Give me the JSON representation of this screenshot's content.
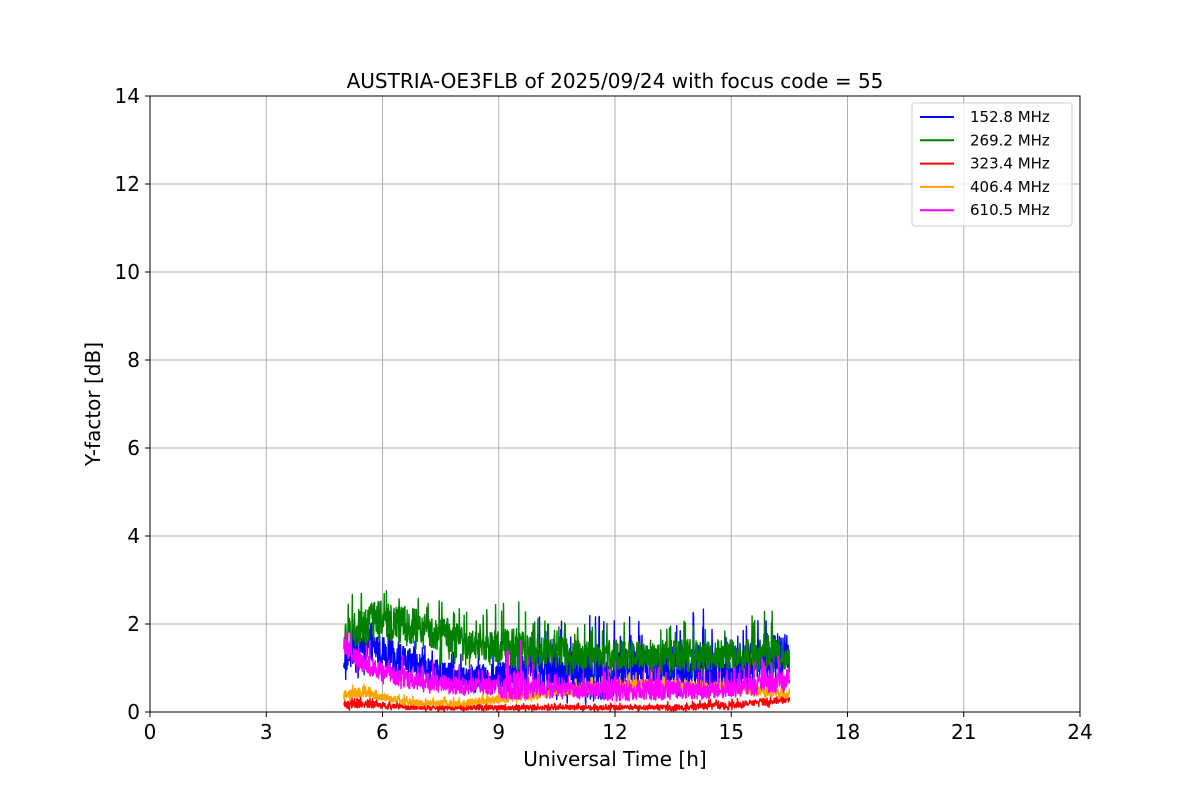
{
  "chart_data": {
    "type": "line",
    "title": "AUSTRIA-OE3FLB of 2025/09/24 with focus code = 55",
    "xlabel": "Universal Time [h]",
    "ylabel": "Y-factor [dB]",
    "xlim": [
      0,
      24
    ],
    "ylim": [
      0,
      14
    ],
    "xticks": [
      0,
      3,
      6,
      9,
      12,
      15,
      18,
      21,
      24
    ],
    "yticks": [
      0,
      2,
      4,
      6,
      8,
      10,
      12,
      14
    ],
    "grid": true,
    "legend_position": "top-right",
    "series": [
      {
        "name": "152.8 MHz",
        "color": "#0000ff",
        "x": [
          5.0,
          5.5,
          6.0,
          6.5,
          7.0,
          7.5,
          8.0,
          8.5,
          9.0,
          9.5,
          10.0,
          10.5,
          11.0,
          11.5,
          12.0,
          12.5,
          13.0,
          13.5,
          14.0,
          14.5,
          15.0,
          15.5,
          16.0,
          16.5
        ],
        "y": [
          1.2,
          1.6,
          1.4,
          1.2,
          1.0,
          0.9,
          0.8,
          0.8,
          0.8,
          0.9,
          1.0,
          0.9,
          0.9,
          0.8,
          0.9,
          1.0,
          1.0,
          1.0,
          1.0,
          1.0,
          1.0,
          1.1,
          1.2,
          1.3
        ],
        "y_min": [
          0.6,
          0.7,
          0.7,
          0.6,
          0.5,
          0.5,
          0.4,
          0.4,
          0.4,
          0.4,
          0.3,
          0.2,
          0.1,
          0.2,
          0.3,
          0.3,
          0.3,
          0.3,
          0.3,
          0.3,
          0.3,
          0.4,
          0.4,
          0.5
        ],
        "y_max": [
          1.8,
          2.2,
          2.0,
          1.8,
          1.6,
          1.5,
          1.4,
          1.4,
          1.5,
          1.6,
          2.2,
          2.1,
          2.0,
          2.3,
          2.2,
          2.2,
          2.0,
          2.2,
          2.4,
          2.3,
          2.1,
          2.3,
          2.5,
          2.2
        ]
      },
      {
        "name": "269.2 MHz",
        "color": "#008000",
        "x": [
          5.0,
          5.5,
          6.0,
          6.5,
          7.0,
          7.5,
          8.0,
          8.5,
          9.0,
          9.5,
          10.0,
          10.5,
          11.0,
          11.5,
          12.0,
          12.5,
          13.0,
          13.5,
          14.0,
          14.5,
          15.0,
          15.5,
          16.0,
          16.5
        ],
        "y": [
          1.7,
          2.0,
          2.1,
          2.0,
          1.9,
          1.8,
          1.6,
          1.5,
          1.5,
          1.4,
          1.4,
          1.4,
          1.3,
          1.3,
          1.3,
          1.3,
          1.3,
          1.3,
          1.3,
          1.3,
          1.3,
          1.3,
          1.4,
          1.2
        ],
        "y_min": [
          1.3,
          1.4,
          1.4,
          1.3,
          1.2,
          1.1,
          1.0,
          1.0,
          1.0,
          0.9,
          0.9,
          0.9,
          0.8,
          0.8,
          0.8,
          0.8,
          0.8,
          0.8,
          0.8,
          0.8,
          0.8,
          0.8,
          0.9,
          0.8
        ],
        "y_max": [
          2.6,
          2.9,
          3.1,
          2.9,
          2.7,
          2.6,
          2.4,
          2.3,
          2.5,
          3.0,
          2.2,
          2.1,
          2.0,
          2.0,
          2.1,
          2.0,
          2.0,
          2.1,
          2.2,
          2.0,
          2.1,
          2.2,
          2.4,
          1.8
        ]
      },
      {
        "name": "323.4 MHz",
        "color": "#ff0000",
        "x": [
          5.0,
          5.5,
          6.0,
          6.5,
          7.0,
          7.5,
          8.0,
          8.5,
          9.0,
          9.5,
          10.0,
          10.5,
          11.0,
          11.5,
          12.0,
          12.5,
          13.0,
          13.5,
          14.0,
          14.5,
          15.0,
          15.5,
          16.0,
          16.5
        ],
        "y": [
          0.15,
          0.2,
          0.15,
          0.12,
          0.1,
          0.1,
          0.1,
          0.1,
          0.1,
          0.1,
          0.1,
          0.1,
          0.1,
          0.1,
          0.1,
          0.1,
          0.1,
          0.1,
          0.12,
          0.15,
          0.15,
          0.2,
          0.25,
          0.3
        ],
        "y_min": [
          0.0,
          0.05,
          0.05,
          0.02,
          0.0,
          0.0,
          0.0,
          0.0,
          0.0,
          0.0,
          0.0,
          0.0,
          0.0,
          0.0,
          0.0,
          0.0,
          0.0,
          0.0,
          0.0,
          0.05,
          0.05,
          0.1,
          0.1,
          0.2
        ],
        "y_max": [
          0.35,
          0.4,
          0.3,
          0.25,
          0.2,
          0.2,
          0.2,
          0.2,
          0.2,
          0.2,
          0.2,
          0.2,
          0.2,
          0.2,
          0.2,
          0.2,
          0.2,
          0.25,
          0.25,
          0.3,
          0.3,
          0.35,
          0.4,
          0.45
        ]
      },
      {
        "name": "406.4 MHz",
        "color": "#ffa500",
        "x": [
          5.0,
          5.5,
          6.0,
          6.5,
          7.0,
          7.5,
          8.0,
          8.5,
          9.0,
          9.5,
          10.0,
          10.5,
          11.0,
          11.5,
          12.0,
          12.5,
          13.0,
          13.5,
          14.0,
          14.5,
          15.0,
          15.5,
          16.0,
          16.5
        ],
        "y": [
          0.4,
          0.45,
          0.35,
          0.25,
          0.2,
          0.2,
          0.2,
          0.25,
          0.3,
          0.35,
          0.4,
          0.45,
          0.5,
          0.55,
          0.6,
          0.6,
          0.6,
          0.6,
          0.6,
          0.55,
          0.55,
          0.5,
          0.45,
          0.4
        ],
        "y_min": [
          0.2,
          0.25,
          0.2,
          0.12,
          0.1,
          0.1,
          0.1,
          0.12,
          0.15,
          0.2,
          0.25,
          0.3,
          0.35,
          0.4,
          0.4,
          0.4,
          0.4,
          0.4,
          0.4,
          0.35,
          0.35,
          0.3,
          0.3,
          0.25
        ],
        "y_max": [
          0.6,
          0.65,
          0.5,
          0.4,
          0.35,
          0.35,
          0.35,
          0.4,
          0.5,
          0.55,
          0.6,
          0.7,
          0.75,
          0.8,
          0.85,
          0.9,
          0.9,
          0.85,
          0.8,
          0.8,
          0.75,
          0.7,
          0.65,
          0.6
        ]
      },
      {
        "name": "610.5 MHz",
        "color": "#ff00ff",
        "x": [
          5.0,
          5.5,
          6.0,
          6.5,
          7.0,
          7.5,
          8.0,
          8.5,
          9.0,
          9.5,
          10.0,
          10.5,
          11.0,
          11.5,
          12.0,
          12.5,
          13.0,
          13.5,
          14.0,
          14.5,
          15.0,
          15.5,
          16.0,
          16.5
        ],
        "y": [
          1.5,
          1.1,
          0.9,
          0.8,
          0.7,
          0.65,
          0.6,
          0.6,
          0.55,
          0.55,
          0.55,
          0.5,
          0.5,
          0.5,
          0.5,
          0.5,
          0.5,
          0.5,
          0.5,
          0.5,
          0.55,
          0.6,
          0.65,
          0.75
        ],
        "y_min": [
          1.1,
          0.8,
          0.6,
          0.5,
          0.45,
          0.4,
          0.35,
          0.35,
          0.3,
          0.3,
          0.3,
          0.3,
          0.25,
          0.25,
          0.25,
          0.25,
          0.2,
          0.25,
          0.25,
          0.3,
          0.3,
          0.35,
          0.4,
          0.45
        ],
        "y_max": [
          1.9,
          1.7,
          1.4,
          1.3,
          1.2,
          1.1,
          1.1,
          1.0,
          1.0,
          1.9,
          1.0,
          0.9,
          0.9,
          1.0,
          1.3,
          1.1,
          1.1,
          1.0,
          1.0,
          1.0,
          1.0,
          1.1,
          1.3,
          1.3
        ]
      }
    ]
  }
}
